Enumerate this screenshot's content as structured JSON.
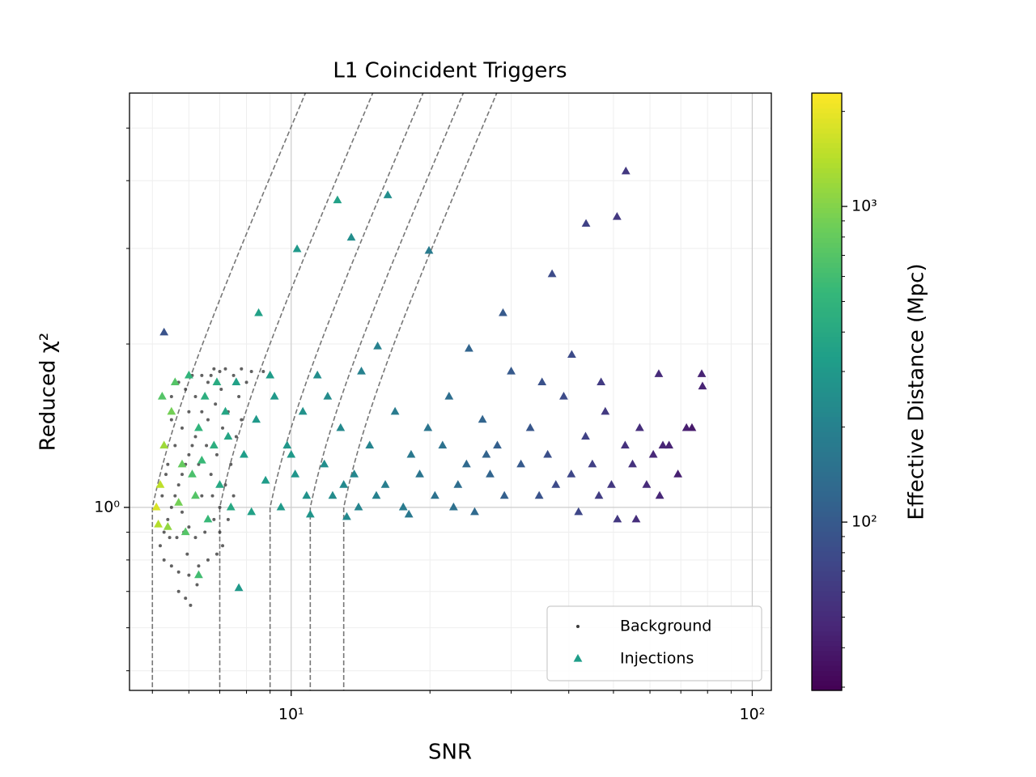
{
  "chart_data": {
    "type": "scatter",
    "title": "L1 Coincident Triggers",
    "x_label": "SNR",
    "y_label": "Reduced χ²",
    "xlog": true,
    "ylog": true,
    "xlim": [
      4.46,
      110
    ],
    "ylim": [
      0.46,
      5.8
    ],
    "xticks": [
      {
        "value": 10,
        "label": "10¹"
      },
      {
        "value": 100,
        "label": "10²"
      }
    ],
    "yticks": [
      {
        "value": 1,
        "label": "10⁰"
      }
    ],
    "xminorticks": [
      5,
      6,
      7,
      8,
      9,
      20,
      30,
      40,
      50,
      60,
      70,
      80,
      90
    ],
    "yminorticks": [
      0.5,
      0.6,
      0.7,
      0.8,
      0.9,
      2,
      3,
      4,
      5
    ],
    "grid": true,
    "legend": "lower right",
    "contours": [
      5,
      7,
      9,
      11,
      13
    ],
    "colorbar": {
      "label": "Effective Distance (Mpc)",
      "log": true,
      "lim": [
        29.3,
        2286
      ],
      "ticks": [
        {
          "value": 100,
          "label": "10²"
        },
        {
          "value": 1000,
          "label": "10³"
        }
      ],
      "minorticks": [
        30,
        40,
        50,
        60,
        70,
        80,
        90,
        200,
        300,
        400,
        500,
        600,
        700,
        800,
        900,
        2000
      ],
      "colormap": [
        "#440154",
        "#482878",
        "#3e4989",
        "#31688e",
        "#26828e",
        "#1f9e89",
        "#35b779",
        "#6ece58",
        "#b5de2b",
        "#fde725"
      ]
    },
    "series": [
      {
        "name": "Background",
        "color": "#3a3a3a",
        "x": [
          5.2,
          5.3,
          5.4,
          5.5,
          5.6,
          5.7,
          5.8,
          5.9,
          6.0,
          6.1,
          6.2,
          6.3,
          6.4,
          6.5,
          6.6,
          6.7,
          6.8,
          7.0,
          7.2,
          7.5,
          7.8,
          8.2,
          5.3,
          5.5,
          5.7,
          6.0,
          6.3,
          6.6,
          6.9,
          7.1,
          5.4,
          5.6,
          5.8,
          6.0,
          6.2,
          5.5,
          5.9,
          6.1,
          7.3,
          7.6,
          7.4,
          7.2,
          7.0,
          6.8,
          6.5,
          6.2,
          6.0,
          5.8,
          6.4,
          6.7,
          6.9,
          7.1,
          7.7,
          8.0,
          5.25,
          5.35,
          6.55,
          6.85,
          7.05,
          5.65,
          5.95,
          6.25,
          5.7,
          5.9,
          7.5,
          7.3,
          7.0,
          6.3,
          6.6,
          5.5,
          5.7,
          6.4,
          8.7,
          6.05,
          5.85,
          5.45,
          6.75,
          7.8
        ],
        "values": [
          0.85,
          0.9,
          0.95,
          1.0,
          1.05,
          1.1,
          1.15,
          1.2,
          1.25,
          1.3,
          1.35,
          1.4,
          1.5,
          1.6,
          1.7,
          1.75,
          1.8,
          1.78,
          1.8,
          1.75,
          1.8,
          1.78,
          0.8,
          0.78,
          0.76,
          0.75,
          0.78,
          0.8,
          0.82,
          0.85,
          1.2,
          1.3,
          1.4,
          1.5,
          1.6,
          1.45,
          1.65,
          1.75,
          1.5,
          1.35,
          1.2,
          1.1,
          1.0,
          0.95,
          0.9,
          0.88,
          0.92,
          0.98,
          1.05,
          1.15,
          1.25,
          1.4,
          1.6,
          1.7,
          1.05,
          1.15,
          1.3,
          1.55,
          1.65,
          0.88,
          0.82,
          0.72,
          0.7,
          0.68,
          1.05,
          0.95,
          0.9,
          1.2,
          1.45,
          1.6,
          1.7,
          1.75,
          1.78,
          0.66,
          0.9,
          0.88,
          1.05,
          1.45
        ]
      },
      {
        "name": "Injections",
        "color": "#1f9e89",
        "x": [
          5.3,
          10.3,
          12.6,
          16.2,
          13.5,
          19.9,
          53.2,
          50.9,
          43.6,
          36.8,
          28.8,
          40.6,
          24.3,
          15.4,
          8.5,
          7.7,
          6.3,
          77.7,
          78,
          62.7,
          5.1,
          5.2,
          5.3,
          5.4,
          5.5,
          5.6,
          5.8,
          6.0,
          6.2,
          6.3,
          6.5,
          6.6,
          6.8,
          7.0,
          7.2,
          7.4,
          7.6,
          7.9,
          8.2,
          8.4,
          5.15,
          5.7,
          6.1,
          6.9,
          5.9,
          6.4,
          7.3,
          5.25,
          8.8,
          9.2,
          9.5,
          9.8,
          10.2,
          10.6,
          11.0,
          11.4,
          11.8,
          12.3,
          12.8,
          13.2,
          13.7,
          14.2,
          14.8,
          15.3,
          9.0,
          10.0,
          12.0,
          13.0,
          10.8,
          14.0,
          16.0,
          16.8,
          17.5,
          18.2,
          19.0,
          19.8,
          20.5,
          21.3,
          22.0,
          23.0,
          24.0,
          25.0,
          26.0,
          27.0,
          28.0,
          29.0,
          30.0,
          18.0,
          22.5,
          26.5,
          31.5,
          33.0,
          34.5,
          36.0,
          37.5,
          39.0,
          40.5,
          42.0,
          43.5,
          45.0,
          46.5,
          48.0,
          49.5,
          51.0,
          53.0,
          55.0,
          57.0,
          59.0,
          61.0,
          63.0,
          66.0,
          69.0,
          72.0,
          74.0,
          56.0,
          64.0,
          35.0,
          47.0
        ],
        "values": [
          2.1,
          2.99,
          3.68,
          3.76,
          3.14,
          2.97,
          4.16,
          3.43,
          3.33,
          2.69,
          2.28,
          1.91,
          1.96,
          1.98,
          2.28,
          0.71,
          0.75,
          1.76,
          1.67,
          1.76,
          1.0,
          1.1,
          1.3,
          0.92,
          1.5,
          1.7,
          1.2,
          1.75,
          1.05,
          1.4,
          1.6,
          0.95,
          1.3,
          1.1,
          1.5,
          1.0,
          1.7,
          1.25,
          0.98,
          1.45,
          0.93,
          1.02,
          1.15,
          1.7,
          0.9,
          1.22,
          1.35,
          1.6,
          1.12,
          1.6,
          1.0,
          1.3,
          1.15,
          1.5,
          0.97,
          1.75,
          1.2,
          1.05,
          1.4,
          0.96,
          1.15,
          1.78,
          1.3,
          1.05,
          1.75,
          1.25,
          1.6,
          1.1,
          1.05,
          1.0,
          1.1,
          1.5,
          1.0,
          1.25,
          1.15,
          1.4,
          1.05,
          1.3,
          1.6,
          1.1,
          1.2,
          0.98,
          1.45,
          1.15,
          1.3,
          1.05,
          1.78,
          0.97,
          1.0,
          1.25,
          1.2,
          1.4,
          1.05,
          1.25,
          1.1,
          1.6,
          1.15,
          0.98,
          1.35,
          1.2,
          1.05,
          1.5,
          1.1,
          0.95,
          1.3,
          1.2,
          1.4,
          1.1,
          1.25,
          1.05,
          1.3,
          1.15,
          1.4,
          1.4,
          0.95,
          1.3,
          1.7,
          1.7
        ],
        "c": [
          90,
          300,
          350,
          250,
          250,
          180,
          60,
          60,
          70,
          80,
          100,
          80,
          120,
          200,
          350,
          300,
          600,
          45,
          45,
          50,
          1800,
          1500,
          1200,
          1100,
          900,
          700,
          800,
          500,
          700,
          500,
          450,
          550,
          450,
          400,
          380,
          400,
          350,
          330,
          350,
          300,
          1400,
          900,
          650,
          420,
          700,
          550,
          380,
          700,
          320,
          300,
          310,
          290,
          280,
          270,
          280,
          250,
          250,
          240,
          230,
          230,
          220,
          200,
          210,
          200,
          320,
          300,
          240,
          230,
          270,
          210,
          190,
          180,
          180,
          170,
          160,
          160,
          150,
          150,
          140,
          140,
          130,
          130,
          120,
          120,
          110,
          110,
          100,
          170,
          145,
          118,
          100,
          95,
          90,
          85,
          80,
          80,
          75,
          75,
          70,
          68,
          65,
          62,
          60,
          60,
          55,
          55,
          52,
          50,
          48,
          47,
          45,
          43,
          42,
          40,
          52,
          46,
          88,
          63
        ]
      }
    ]
  }
}
